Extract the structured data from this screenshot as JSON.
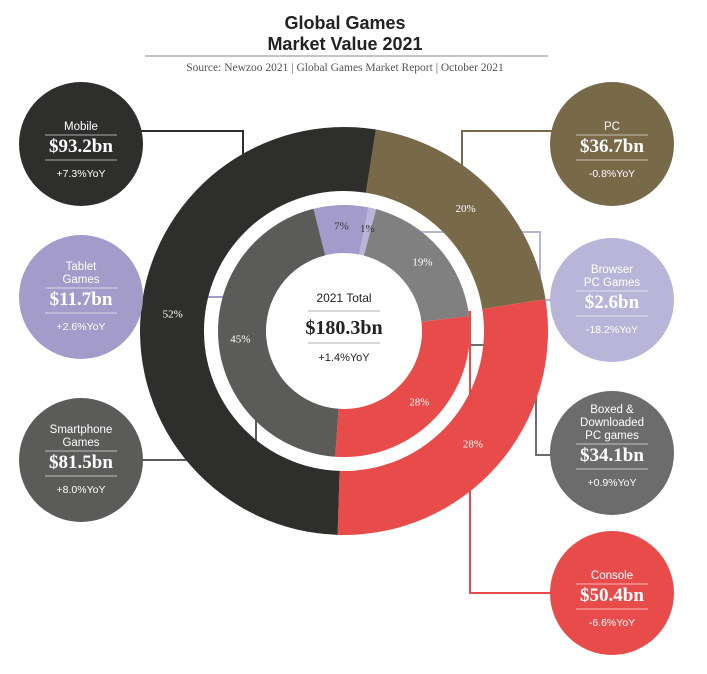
{
  "chart_data": {
    "type": "pie",
    "title": [
      "Global Games",
      "Market Value 2021"
    ],
    "subtitle": "Source: Newzoo 2021 | Global Games Market Report | October 2021",
    "total": {
      "label": "2021 Total",
      "value": "$180.3bn",
      "yoy": "+1.4%YoY"
    },
    "outer_ring": [
      {
        "name": "Mobile",
        "value_bn": 93.2,
        "value": "$93.2bn",
        "yoy": "+7.3%YoY",
        "pct": 52,
        "pct_label": "52%",
        "color": "#2e2f2d"
      },
      {
        "name": "PC",
        "value_bn": 36.7,
        "value": "$36.7bn",
        "yoy": "-0.8%YoY",
        "pct": 20,
        "pct_label": "20%",
        "color": "#786949"
      },
      {
        "name": "Console",
        "value_bn": 50.4,
        "value": "$50.4bn",
        "yoy": "-6.6%YoY",
        "pct": 28,
        "pct_label": "28%",
        "color": "#e84c4a"
      }
    ],
    "inner_ring": [
      {
        "name": "Tablet Games",
        "value_bn": 11.7,
        "value": "$11.7bn",
        "yoy": "+2.6%YoY",
        "pct": 7,
        "pct_label": "7%",
        "color": "#a39ccb"
      },
      {
        "name": "Browser PC Games",
        "value_bn": 2.6,
        "value": "$2.6bn",
        "yoy": "-18.2%YoY",
        "pct": 1,
        "pct_label": "1%",
        "color": "#b8b5d8"
      },
      {
        "name": "Boxed & Downloaded PC games",
        "value_bn": 34.1,
        "value": "$34.1bn",
        "yoy": "+0.9%YoY",
        "pct": 19,
        "pct_label": "19%",
        "color": "#808080"
      },
      {
        "name": "Console",
        "value_bn": 50.4,
        "value": "$50.4bn",
        "yoy": "-6.6%YoY",
        "pct": 28,
        "pct_label": "28%",
        "color": "#e84c4a"
      },
      {
        "name": "Smartphone Games",
        "value_bn": 81.5,
        "value": "$81.5bn",
        "yoy": "+8.0%YoY",
        "pct": 45,
        "pct_label": "45%",
        "color": "#5b5c5a"
      }
    ],
    "bubbles": [
      {
        "id": "mobile",
        "name_lines": [
          "Mobile"
        ],
        "value": "$93.2bn",
        "yoy": "+7.3%YoY",
        "color": "#2e2f2d"
      },
      {
        "id": "tablet",
        "name_lines": [
          "Tablet",
          "Games"
        ],
        "value": "$11.7bn",
        "yoy": "+2.6%YoY",
        "color": "#a39ccb"
      },
      {
        "id": "smartphone",
        "name_lines": [
          "Smartphone",
          "Games"
        ],
        "value": "$81.5bn",
        "yoy": "+8.0%YoY",
        "color": "#5b5c5a"
      },
      {
        "id": "pc",
        "name_lines": [
          "PC"
        ],
        "value": "$36.7bn",
        "yoy": "-0.8%YoY",
        "color": "#786949"
      },
      {
        "id": "browser",
        "name_lines": [
          "Browser",
          "PC Games"
        ],
        "value": "$2.6bn",
        "yoy": "-18.2%YoY",
        "color": "#b8b5d8"
      },
      {
        "id": "boxed",
        "name_lines": [
          "Boxed &",
          "Downloaded",
          "PC games"
        ],
        "value": "$34.1bn",
        "yoy": "+0.9%YoY",
        "color": "#6c6c6c"
      },
      {
        "id": "console",
        "name_lines": [
          "Console"
        ],
        "value": "$50.4bn",
        "yoy": "-6.6%YoY",
        "color": "#e84c4a"
      }
    ]
  }
}
